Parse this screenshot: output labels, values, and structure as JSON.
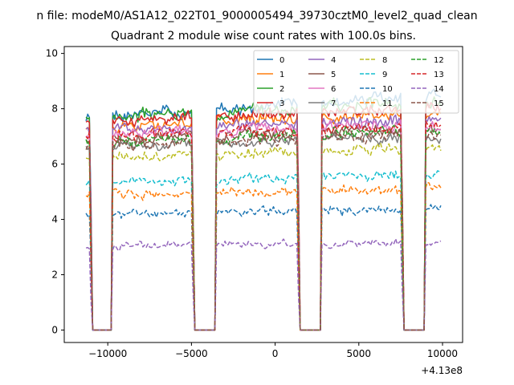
{
  "chart_data": {
    "type": "line",
    "suptitle": "n file: modeM0/AS1A12_022T01_9000005494_39730cztM0_level2_quad_clean",
    "title": "Quadrant 2 module wise count rates with 100.0s bins.",
    "xlabel": "",
    "ylabel": "",
    "x_offset_label": "+4.13e8",
    "xlim": [
      -12600,
      11200
    ],
    "ylim": [
      -0.45,
      10.25
    ],
    "x_ticks": [
      -10000,
      -5000,
      0,
      5000,
      10000
    ],
    "x_tick_labels": [
      "−10000",
      "−5000",
      "0",
      "5000",
      "10000"
    ],
    "y_ticks": [
      0,
      2,
      4,
      6,
      8,
      10
    ],
    "y_tick_labels": [
      "0",
      "2",
      "4",
      "6",
      "8",
      "10"
    ],
    "grid": false,
    "legend_position": "top-right",
    "x_start": -11300,
    "x_step": 100,
    "gaps": [
      [
        -10900,
        -9800
      ],
      [
        -4800,
        -3600
      ],
      [
        1500,
        2700
      ],
      [
        7700,
        8900
      ]
    ],
    "gap_edges": [
      [
        -11100,
        -10700
      ],
      [
        -10000,
        -9700
      ],
      [
        -5000,
        -4700
      ],
      [
        -3800,
        -3500
      ],
      [
        1300,
        1600
      ],
      [
        2500,
        2800
      ],
      [
        7500,
        7800
      ],
      [
        8700,
        9000
      ]
    ],
    "series": [
      {
        "name": "0",
        "color": "#1f77b4",
        "dash": "solid",
        "level": 8.1,
        "slope": 0.045,
        "noise": 0.28,
        "seed": 1
      },
      {
        "name": "1",
        "color": "#ff7f0e",
        "dash": "solid",
        "level": 7.6,
        "slope": 0.02,
        "noise": 0.25,
        "seed": 2
      },
      {
        "name": "2",
        "color": "#2ca02c",
        "dash": "solid",
        "level": 8.0,
        "slope": 0.03,
        "noise": 0.26,
        "seed": 3
      },
      {
        "name": "3",
        "color": "#d62728",
        "dash": "solid",
        "level": 7.8,
        "slope": 0.02,
        "noise": 0.25,
        "seed": 4
      },
      {
        "name": "4",
        "color": "#9467bd",
        "dash": "solid",
        "level": 7.4,
        "slope": 0.02,
        "noise": 0.24,
        "seed": 5
      },
      {
        "name": "5",
        "color": "#8c564b",
        "dash": "solid",
        "level": 7.1,
        "slope": 0.02,
        "noise": 0.24,
        "seed": 6
      },
      {
        "name": "6",
        "color": "#e377c2",
        "dash": "solid",
        "level": 7.3,
        "slope": 0.02,
        "noise": 0.24,
        "seed": 7
      },
      {
        "name": "7",
        "color": "#7f7f7f",
        "dash": "solid",
        "level": 6.8,
        "slope": 0.02,
        "noise": 0.23,
        "seed": 8
      },
      {
        "name": "8",
        "color": "#bcbd22",
        "dash": "dashed",
        "level": 6.4,
        "slope": 0.015,
        "noise": 0.22,
        "seed": 9
      },
      {
        "name": "9",
        "color": "#17becf",
        "dash": "dashed",
        "level": 5.5,
        "slope": 0.015,
        "noise": 0.2,
        "seed": 10
      },
      {
        "name": "10",
        "color": "#1f77b4",
        "dash": "dashed",
        "level": 4.3,
        "slope": 0.01,
        "noise": 0.18,
        "seed": 11
      },
      {
        "name": "11",
        "color": "#ff7f0e",
        "dash": "dashed",
        "level": 5.0,
        "slope": 0.01,
        "noise": 0.2,
        "seed": 12
      },
      {
        "name": "12",
        "color": "#2ca02c",
        "dash": "dashed",
        "level": 7.0,
        "slope": 0.02,
        "noise": 0.25,
        "seed": 13
      },
      {
        "name": "13",
        "color": "#d62728",
        "dash": "dashed",
        "level": 7.2,
        "slope": 0.02,
        "noise": 0.24,
        "seed": 14
      },
      {
        "name": "14",
        "color": "#9467bd",
        "dash": "dashed",
        "level": 3.1,
        "slope": 0.008,
        "noise": 0.16,
        "seed": 15
      },
      {
        "name": "15",
        "color": "#8c564b",
        "dash": "dashed",
        "level": 6.9,
        "slope": 0.02,
        "noise": 0.24,
        "seed": 16
      }
    ]
  }
}
